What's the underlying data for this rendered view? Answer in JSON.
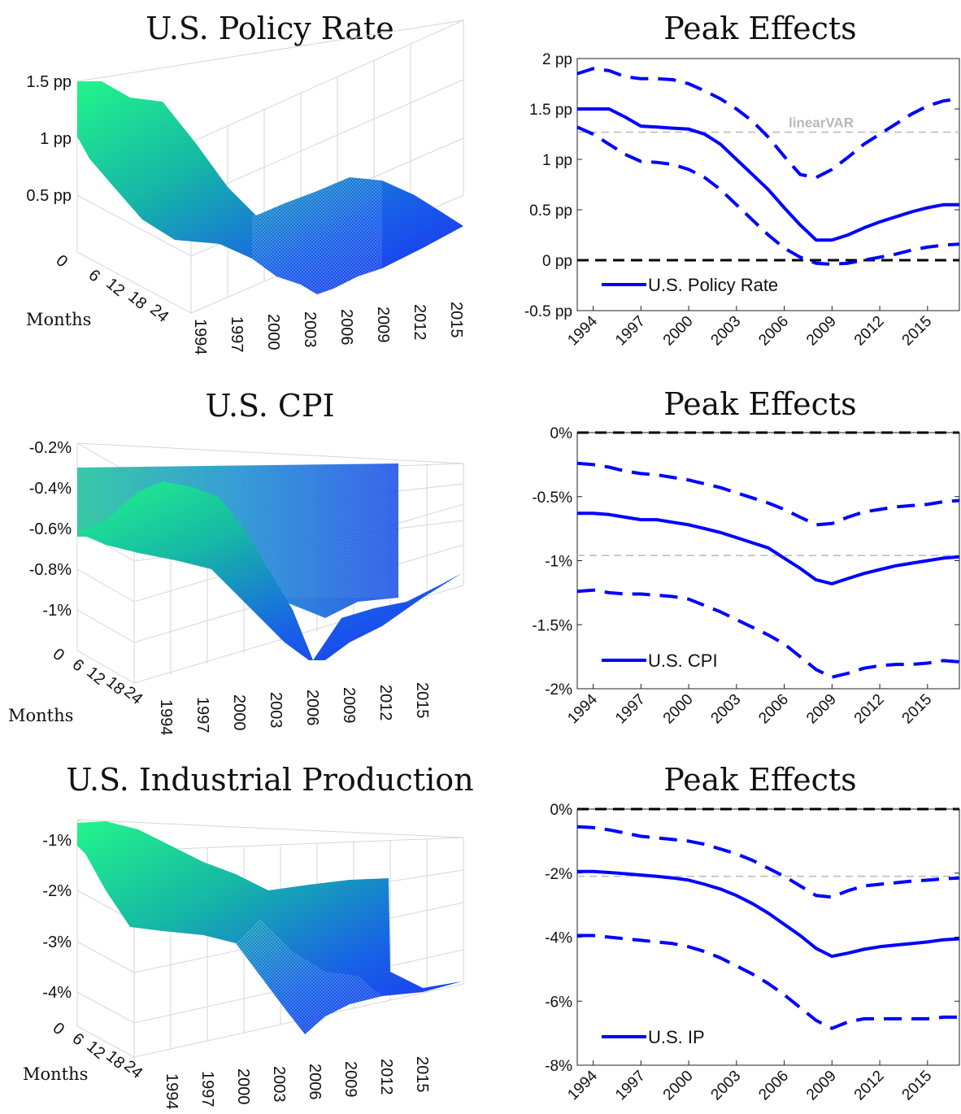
{
  "chart_data": [
    {
      "type": "surface",
      "title": "U.S. Policy Rate",
      "zticks": [
        "0.5 pp",
        "1 pp",
        "1.5 pp"
      ],
      "zvalues": [
        0.5,
        1.0,
        1.5
      ],
      "zlim": [
        0,
        1.6
      ],
      "yticks": [
        "0",
        "6",
        "12",
        "18",
        "24"
      ],
      "ylabel": "Months",
      "xticks": [
        "1994",
        "1997",
        "2000",
        "2003",
        "2006",
        "2009",
        "2012",
        "2015"
      ],
      "x": [
        1993,
        1995,
        1997,
        1999,
        2001,
        2003,
        2005,
        2007,
        2009,
        2011,
        2013,
        2015,
        2017
      ],
      "peak_profile": [
        1.5,
        1.45,
        1.3,
        1.3,
        1.2,
        0.9,
        0.6,
        0.3,
        0.2,
        0.35,
        0.45,
        0.55,
        0.55
      ],
      "colors": {
        "high": "#20f08a",
        "low": "#1d3df0"
      }
    },
    {
      "type": "line",
      "title": "Peak Effects",
      "x": [
        1993,
        1994,
        1995,
        1996,
        1997,
        1998,
        1999,
        2000,
        2001,
        2002,
        2003,
        2004,
        2005,
        2006,
        2007,
        2008,
        2009,
        2010,
        2011,
        2012,
        2013,
        2014,
        2015,
        2016,
        2017
      ],
      "xticks": [
        "1994",
        "1997",
        "2000",
        "2003",
        "2006",
        "2009",
        "2012",
        "2015"
      ],
      "xtick_values": [
        1994,
        1997,
        2000,
        2003,
        2006,
        2009,
        2012,
        2015
      ],
      "xlim": [
        1993,
        2017
      ],
      "yticks": [
        "-0.5 pp",
        "0 pp",
        "0.5 pp",
        "1 pp",
        "1.5 pp",
        "2 pp"
      ],
      "ytick_values": [
        -0.5,
        0,
        0.5,
        1,
        1.5,
        2
      ],
      "ylim": [
        -0.5,
        2
      ],
      "series": [
        {
          "name": "U.S. Policy Rate",
          "style": "solid",
          "values": [
            1.5,
            1.5,
            1.5,
            1.42,
            1.33,
            1.32,
            1.31,
            1.3,
            1.25,
            1.15,
            1.0,
            0.85,
            0.7,
            0.52,
            0.35,
            0.2,
            0.2,
            0.25,
            0.32,
            0.38,
            0.43,
            0.48,
            0.52,
            0.55,
            0.55
          ]
        },
        {
          "style": "dashed",
          "values": [
            1.85,
            1.9,
            1.88,
            1.82,
            1.8,
            1.8,
            1.79,
            1.75,
            1.68,
            1.6,
            1.5,
            1.38,
            1.22,
            1.03,
            0.85,
            0.82,
            0.9,
            1.02,
            1.15,
            1.25,
            1.35,
            1.45,
            1.53,
            1.58,
            1.6
          ]
        },
        {
          "style": "dashed",
          "values": [
            1.32,
            1.25,
            1.15,
            1.05,
            0.98,
            0.97,
            0.95,
            0.9,
            0.82,
            0.7,
            0.55,
            0.4,
            0.25,
            0.12,
            0.03,
            -0.03,
            -0.04,
            -0.03,
            0.0,
            0.03,
            0.06,
            0.1,
            0.13,
            0.15,
            0.16
          ]
        }
      ],
      "hline_grey": 1.27,
      "hline_grey_label": "linearVAR",
      "hline_black": 0,
      "legend": "bottom-left",
      "colors": {
        "series": "#0000ff",
        "zero": "#000000",
        "reference": "#bdbdbd"
      }
    },
    {
      "type": "surface",
      "title": "U.S. CPI",
      "zticks": [
        "-1%",
        "-0.8%",
        "-0.6%",
        "-0.4%",
        "-0.2%"
      ],
      "zvalues": [
        -1.0,
        -0.8,
        -0.6,
        -0.4,
        -0.2
      ],
      "zlim": [
        -1.2,
        -0.2
      ],
      "yticks": [
        "0",
        "6",
        "12",
        "18",
        "24"
      ],
      "ylabel": "Months",
      "xticks": [
        "1994",
        "1997",
        "2000",
        "2003",
        "2006",
        "2009",
        "2012",
        "2015"
      ],
      "x": [
        1993,
        1995,
        1997,
        1999,
        2001,
        2003,
        2005,
        2007,
        2009,
        2011,
        2013,
        2015,
        2017
      ],
      "peak_profile": [
        -0.6,
        -0.62,
        -0.64,
        -0.66,
        -0.7,
        -0.78,
        -0.88,
        -1.05,
        -1.18,
        -1.1,
        -1.05,
        -1.0,
        -0.98
      ],
      "colors": {
        "high": "#20f08a",
        "low": "#1d3df0"
      }
    },
    {
      "type": "line",
      "title": "Peak Effects",
      "x": [
        1993,
        1994,
        1995,
        1996,
        1997,
        1998,
        1999,
        2000,
        2001,
        2002,
        2003,
        2004,
        2005,
        2006,
        2007,
        2008,
        2009,
        2010,
        2011,
        2012,
        2013,
        2014,
        2015,
        2016,
        2017
      ],
      "xticks": [
        "1994",
        "1997",
        "2000",
        "2003",
        "2006",
        "2009",
        "2012",
        "2015"
      ],
      "xtick_values": [
        1994,
        1997,
        2000,
        2003,
        2006,
        2009,
        2012,
        2015
      ],
      "xlim": [
        1993,
        2017
      ],
      "yticks": [
        "-2%",
        "-1.5%",
        "-1%",
        "-0.5%",
        "0%"
      ],
      "ytick_values": [
        -2,
        -1.5,
        -1,
        -0.5,
        0
      ],
      "ylim": [
        -2,
        0
      ],
      "series": [
        {
          "name": "U.S. CPI",
          "style": "solid",
          "values": [
            -0.63,
            -0.63,
            -0.64,
            -0.66,
            -0.68,
            -0.68,
            -0.7,
            -0.72,
            -0.75,
            -0.78,
            -0.82,
            -0.86,
            -0.9,
            -0.98,
            -1.06,
            -1.15,
            -1.18,
            -1.14,
            -1.1,
            -1.07,
            -1.04,
            -1.02,
            -1.0,
            -0.98,
            -0.97
          ]
        },
        {
          "style": "dashed",
          "values": [
            -0.24,
            -0.25,
            -0.27,
            -0.3,
            -0.32,
            -0.33,
            -0.35,
            -0.37,
            -0.4,
            -0.43,
            -0.47,
            -0.51,
            -0.55,
            -0.6,
            -0.66,
            -0.72,
            -0.71,
            -0.66,
            -0.62,
            -0.6,
            -0.58,
            -0.57,
            -0.56,
            -0.54,
            -0.53
          ]
        },
        {
          "style": "dashed",
          "values": [
            -1.24,
            -1.23,
            -1.25,
            -1.26,
            -1.26,
            -1.27,
            -1.28,
            -1.3,
            -1.35,
            -1.4,
            -1.46,
            -1.52,
            -1.58,
            -1.65,
            -1.75,
            -1.85,
            -1.91,
            -1.88,
            -1.84,
            -1.82,
            -1.81,
            -1.81,
            -1.8,
            -1.78,
            -1.79
          ]
        }
      ],
      "hline_grey": -0.96,
      "hline_black": 0,
      "legend": "bottom-left",
      "colors": {
        "series": "#0000ff",
        "zero": "#000000",
        "reference": "#bdbdbd"
      }
    },
    {
      "type": "surface",
      "title": "U.S. Industrial Production",
      "zticks": [
        "-4%",
        "-3%",
        "-2%",
        "-1%"
      ],
      "zvalues": [
        -4,
        -3,
        -2,
        -1
      ],
      "zlim": [
        -4.8,
        -0.6
      ],
      "yticks": [
        "0",
        "6",
        "12",
        "18",
        "24"
      ],
      "ylabel": "Months",
      "xticks": [
        "1994",
        "1997",
        "2000",
        "2003",
        "2006",
        "2009",
        "2012",
        "2015"
      ],
      "x": [
        1993,
        1995,
        1997,
        1999,
        2001,
        2003,
        2005,
        2007,
        2009,
        2011,
        2013,
        2015,
        2017
      ],
      "peak_profile": [
        -0.8,
        -1.0,
        -1.3,
        -1.6,
        -2.0,
        -2.6,
        -3.2,
        -3.9,
        -4.6,
        -4.4,
        -4.3,
        -4.2,
        -4.0
      ],
      "colors": {
        "high": "#20f08a",
        "low": "#1d3df0"
      }
    },
    {
      "type": "line",
      "title": "Peak Effects",
      "x": [
        1993,
        1994,
        1995,
        1996,
        1997,
        1998,
        1999,
        2000,
        2001,
        2002,
        2003,
        2004,
        2005,
        2006,
        2007,
        2008,
        2009,
        2010,
        2011,
        2012,
        2013,
        2014,
        2015,
        2016,
        2017
      ],
      "xticks": [
        "1994",
        "1997",
        "2000",
        "2003",
        "2006",
        "2009",
        "2012",
        "2015"
      ],
      "xtick_values": [
        1994,
        1997,
        2000,
        2003,
        2006,
        2009,
        2012,
        2015
      ],
      "xlim": [
        1993,
        2017
      ],
      "yticks": [
        "-8%",
        "-6%",
        "-4%",
        "-2%",
        "0%"
      ],
      "ytick_values": [
        -8,
        -6,
        -4,
        -2,
        0
      ],
      "ylim": [
        -8,
        0
      ],
      "series": [
        {
          "name": "U.S. IP",
          "style": "solid",
          "values": [
            -1.95,
            -1.95,
            -1.98,
            -2.02,
            -2.06,
            -2.1,
            -2.15,
            -2.22,
            -2.35,
            -2.5,
            -2.7,
            -2.95,
            -3.25,
            -3.6,
            -3.95,
            -4.35,
            -4.6,
            -4.5,
            -4.38,
            -4.3,
            -4.25,
            -4.2,
            -4.15,
            -4.08,
            -4.05
          ]
        },
        {
          "style": "dashed",
          "values": [
            -0.55,
            -0.58,
            -0.65,
            -0.75,
            -0.85,
            -0.9,
            -0.95,
            -1.0,
            -1.1,
            -1.25,
            -1.4,
            -1.6,
            -1.85,
            -2.1,
            -2.4,
            -2.7,
            -2.75,
            -2.55,
            -2.4,
            -2.35,
            -2.3,
            -2.25,
            -2.22,
            -2.18,
            -2.15
          ]
        },
        {
          "style": "dashed",
          "values": [
            -3.95,
            -3.95,
            -4.0,
            -4.05,
            -4.1,
            -4.15,
            -4.2,
            -4.3,
            -4.45,
            -4.65,
            -4.9,
            -5.15,
            -5.45,
            -5.8,
            -6.2,
            -6.6,
            -6.85,
            -6.65,
            -6.55,
            -6.55,
            -6.55,
            -6.55,
            -6.55,
            -6.5,
            -6.5
          ]
        }
      ],
      "hline_grey": -2.1,
      "hline_black": 0,
      "legend": "bottom-left",
      "colors": {
        "series": "#0000ff",
        "zero": "#000000",
        "reference": "#bdbdbd"
      }
    }
  ]
}
